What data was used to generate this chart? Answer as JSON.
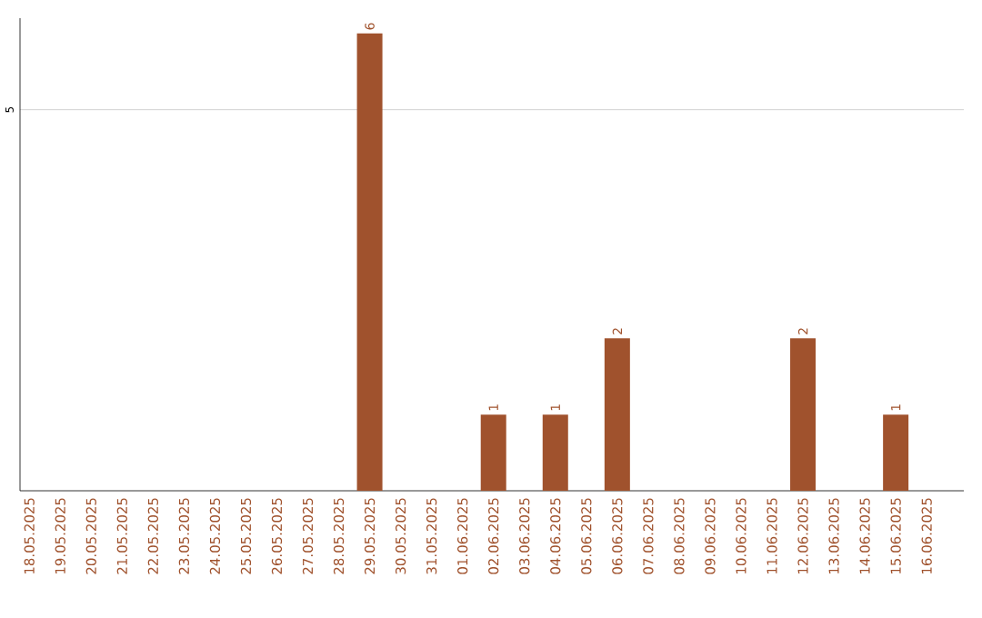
{
  "chart_data": {
    "type": "bar",
    "categories": [
      "18.05.2025",
      "19.05.2025",
      "20.05.2025",
      "21.05.2025",
      "22.05.2025",
      "23.05.2025",
      "24.05.2025",
      "25.05.2025",
      "26.05.2025",
      "27.05.2025",
      "28.05.2025",
      "29.05.2025",
      "30.05.2025",
      "31.05.2025",
      "01.06.2025",
      "02.06.2025",
      "03.06.2025",
      "04.06.2025",
      "05.06.2025",
      "06.06.2025",
      "07.06.2025",
      "08.06.2025",
      "09.06.2025",
      "10.06.2025",
      "11.06.2025",
      "12.06.2025",
      "13.06.2025",
      "14.06.2025",
      "15.06.2025",
      "16.06.2025"
    ],
    "values": [
      0,
      0,
      0,
      0,
      0,
      0,
      0,
      0,
      0,
      0,
      0,
      6,
      0,
      0,
      0,
      1,
      0,
      1,
      0,
      2,
      0,
      0,
      0,
      0,
      0,
      2,
      0,
      0,
      1,
      0
    ],
    "value_labels": [
      null,
      null,
      null,
      null,
      null,
      null,
      null,
      null,
      null,
      null,
      null,
      "6",
      null,
      null,
      null,
      "1",
      null,
      "1",
      null,
      "2",
      null,
      null,
      null,
      null,
      null,
      "2",
      null,
      null,
      "1",
      null
    ],
    "color": "#a0522d",
    "ylim": [
      0,
      6.2
    ],
    "yticks": [
      5
    ],
    "grid": "y"
  }
}
